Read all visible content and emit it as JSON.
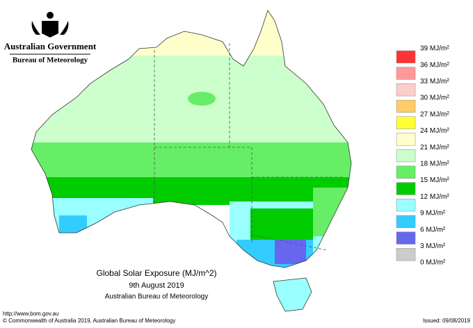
{
  "header": {
    "government": "Australian Government",
    "bureau": "Bureau of Meteorology"
  },
  "legend": {
    "labels": [
      "39 MJ/m²",
      "36 MJ/m²",
      "33 MJ/m²",
      "30 MJ/m²",
      "27 MJ/m²",
      "24 MJ/m²",
      "21 MJ/m²",
      "18 MJ/m²",
      "15 MJ/m²",
      "12 MJ/m²",
      "9 MJ/m²",
      "6 MJ/m²",
      "3 MJ/m²",
      "0 MJ/m²"
    ],
    "colors": [
      "#ff3333",
      "#ff9999",
      "#ffcccc",
      "#ffcc66",
      "#ffff33",
      "#ffffcc",
      "#ccffcc",
      "#66ee66",
      "#00cc00",
      "#99ffff",
      "#33ccff",
      "#6666ee",
      "#cccccc"
    ]
  },
  "map": {
    "title": "Global Solar Exposure (MJ/m^2)",
    "date": "9th August 2019",
    "source": "Australian Bureau of Meteorology"
  },
  "footer": {
    "url": "http://www.bom.gov.au",
    "copyright": "© Commonwealth of Australia 2019, Australian Bureau of Meteorology",
    "issued": "Issued: 09/08/2019"
  }
}
